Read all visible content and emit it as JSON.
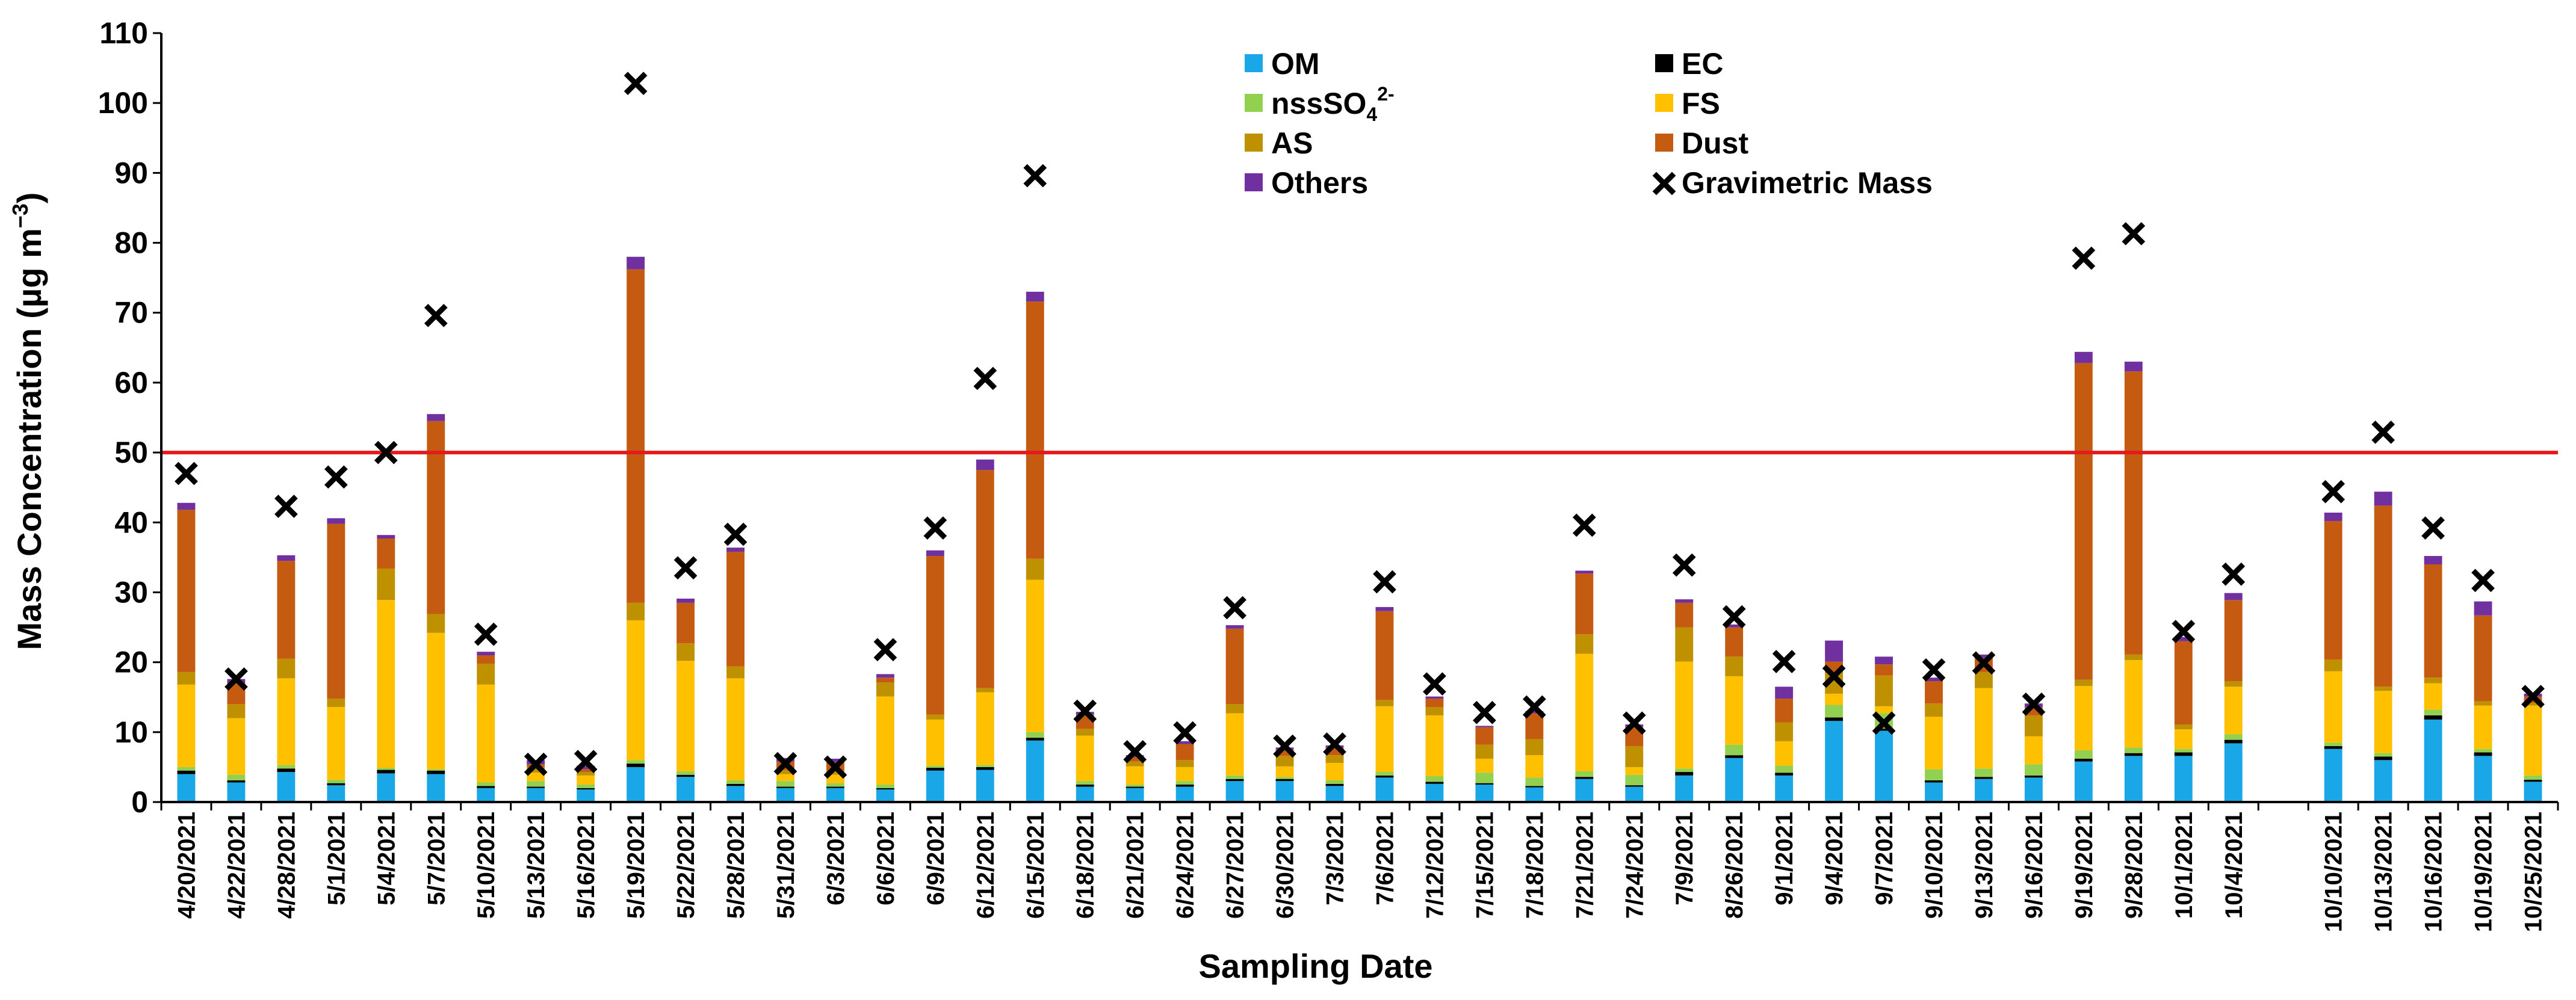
{
  "chart_data": {
    "type": "bar",
    "stacked": true,
    "xlabel": "Sampling Date",
    "ylabel_main": "Mass Concentration (µg m",
    "ylabel_sup": "−3",
    "ylabel_close": ")",
    "ylim": [
      0,
      110
    ],
    "yticks": [
      0,
      10,
      20,
      30,
      40,
      50,
      60,
      70,
      80,
      90,
      100,
      110
    ],
    "reference_line": {
      "value": 50,
      "color": "#e41a1c"
    },
    "categories": [
      "4/20/2021",
      "4/22/2021",
      "4/28/2021",
      "5/1/2021",
      "5/4/2021",
      "5/7/2021",
      "5/10/2021",
      "5/13/2021",
      "5/16/2021",
      "5/19/2021",
      "5/22/2021",
      "5/28/2021",
      "5/31/2021",
      "6/3/2021",
      "6/6/2021",
      "6/9/2021",
      "6/12/2021",
      "6/15/2021",
      "6/18/2021",
      "6/21/2021",
      "6/24/2021",
      "6/27/2021",
      "6/30/2021",
      "7/3/2021",
      "7/6/2021",
      "7/12/2021",
      "7/15/2021",
      "7/18/2021",
      "7/21/2021",
      "7/24/2021",
      "7/9/2021",
      "8/26/2021",
      "9/1/2021",
      "9/4/2021",
      "9/7/2021",
      "9/10/2021",
      "9/13/2021",
      "9/16/2021",
      "9/19/2021",
      "9/28/2021",
      "10/1/2021",
      "10/4/2021",
      "",
      "10/10/2021",
      "10/13/2021",
      "10/16/2021",
      "10/19/2021",
      "10/25/2021"
    ],
    "series": [
      {
        "name": "OM",
        "color": "#1aa7e8",
        "values": [
          4,
          2.8,
          4.3,
          2.4,
          4.1,
          4,
          2,
          2,
          1.8,
          5,
          3.6,
          2.3,
          2,
          2,
          1.8,
          4.5,
          4.6,
          8.8,
          2.2,
          2,
          2.2,
          3,
          3,
          2.3,
          3.5,
          2.6,
          2.5,
          2.1,
          3.3,
          2.2,
          3.8,
          6.3,
          3.8,
          11.6,
          10.2,
          2.8,
          3.3,
          3.5,
          5.8,
          6.6,
          6.6,
          8.4,
          null,
          7.6,
          6,
          11.8,
          6.6,
          2.9
        ]
      },
      {
        "name": "EC",
        "color": "#000000",
        "values": [
          0.5,
          0.3,
          0.5,
          0.3,
          0.5,
          0.5,
          0.3,
          0.2,
          0.2,
          0.5,
          0.3,
          0.3,
          0.2,
          0.2,
          0.2,
          0.4,
          0.4,
          0.4,
          0.3,
          0.2,
          0.3,
          0.3,
          0.3,
          0.3,
          0.3,
          0.3,
          0.2,
          0.2,
          0.3,
          0.2,
          0.5,
          0.4,
          0.4,
          0.5,
          0.3,
          0.3,
          0.3,
          0.3,
          0.4,
          0.4,
          0.5,
          0.5,
          null,
          0.4,
          0.5,
          0.6,
          0.5,
          0.3
        ]
      },
      {
        "name": "nssSO₄²⁻",
        "color": "#92d050",
        "values": [
          0.5,
          0.8,
          0.5,
          0.5,
          0.3,
          0.2,
          0.5,
          0.8,
          0.5,
          0.5,
          0.5,
          0.5,
          0.8,
          0.5,
          0.5,
          0.3,
          0.3,
          0.8,
          0.5,
          0.3,
          0.5,
          0.5,
          0.3,
          0.5,
          0.5,
          0.8,
          1.5,
          1.2,
          0.8,
          1.5,
          0.5,
          1.5,
          1,
          1.8,
          2.2,
          1.6,
          1.2,
          1.6,
          1.2,
          0.8,
          0.5,
          0.8,
          null,
          0.5,
          0.5,
          0.8,
          0.5,
          0.6
        ]
      },
      {
        "name": "FS",
        "color": "#ffc000",
        "values": [
          11.8,
          8.1,
          12.4,
          10.4,
          24,
          19.5,
          14,
          1.2,
          1.3,
          20,
          15.8,
          14.6,
          1,
          1.2,
          12.6,
          6.6,
          10.4,
          21.8,
          6.5,
          2.6,
          2,
          8.9,
          1.5,
          2.5,
          9.4,
          8.7,
          2,
          3.2,
          16.8,
          1.1,
          15.3,
          9.8,
          3.5,
          1.6,
          1,
          7.5,
          11.5,
          4,
          9.2,
          12.5,
          2.8,
          6.8,
          null,
          10.2,
          8.9,
          3.8,
          6.2,
          10
        ]
      },
      {
        "name": "AS",
        "color": "#bf9000",
        "values": [
          1.8,
          2,
          2.8,
          1.2,
          4.5,
          2.7,
          3,
          0.8,
          0.5,
          2.5,
          2.5,
          1.7,
          0.6,
          0.6,
          2,
          0.7,
          0.6,
          3,
          1,
          0.7,
          1,
          1.3,
          1.5,
          1.1,
          0.9,
          1.2,
          2,
          2.3,
          2.8,
          3,
          4.9,
          2.8,
          2.7,
          3,
          4.4,
          1.9,
          2.3,
          3,
          0.9,
          0.8,
          0.7,
          0.8,
          null,
          1.7,
          0.6,
          0.8,
          0.6,
          0.4
        ]
      },
      {
        "name": "Dust",
        "color": "#c55a11",
        "values": [
          23.2,
          3,
          14,
          25,
          4.3,
          27.6,
          1.2,
          0.4,
          0.4,
          47.7,
          5.8,
          16.4,
          1.2,
          1.2,
          0.7,
          22.7,
          31.2,
          36.8,
          2,
          0.6,
          2.3,
          10.8,
          0.9,
          1.1,
          12.7,
          1.2,
          2.5,
          3.7,
          8.7,
          2.8,
          3.5,
          4.2,
          3.4,
          1.6,
          1.6,
          3.2,
          2,
          1.2,
          45.3,
          40.5,
          11.9,
          11.6,
          null,
          19.8,
          25.9,
          16.2,
          12.3,
          0.9
        ]
      },
      {
        "name": "Others",
        "color": "#7030a0",
        "values": [
          1,
          0.6,
          0.8,
          0.8,
          0.5,
          1,
          0.5,
          0.6,
          0.5,
          1.8,
          0.6,
          0.6,
          0.5,
          0.5,
          0.5,
          0.8,
          1.5,
          1.4,
          0.4,
          0.3,
          0.4,
          0.5,
          0.3,
          0.3,
          0.6,
          0.3,
          0.2,
          0.3,
          0.4,
          0.3,
          0.5,
          0.4,
          1.7,
          3,
          1.1,
          0.5,
          0.5,
          0.5,
          1.6,
          1.4,
          0.6,
          1,
          null,
          1.2,
          2,
          1.2,
          2,
          0.4
        ]
      }
    ],
    "gravimetric": {
      "name": "Gravimetric Mass",
      "values": [
        47,
        17.6,
        42.3,
        46.5,
        50,
        69.6,
        24,
        5.4,
        5.8,
        102.8,
        33.5,
        38.3,
        5.5,
        5,
        21.8,
        39.2,
        60.6,
        89.6,
        13,
        7.2,
        9.9,
        27.8,
        8,
        8.3,
        31.5,
        16.9,
        12.8,
        13.6,
        39.6,
        11.3,
        33.9,
        26.5,
        20.1,
        18,
        11.3,
        18.9,
        19.9,
        14,
        77.8,
        81.3,
        24.4,
        32.6,
        null,
        44.4,
        52.9,
        39.2,
        31.7,
        15.1
      ]
    },
    "legend": [
      {
        "label": "OM",
        "color": "#1aa7e8",
        "marker": "square"
      },
      {
        "label": "EC",
        "color": "#000000",
        "marker": "square"
      },
      {
        "label_main": "nssSO",
        "label_sub": "4",
        "label_sup": "2-",
        "color": "#92d050",
        "marker": "square"
      },
      {
        "label": "FS",
        "color": "#ffc000",
        "marker": "square"
      },
      {
        "label": "AS",
        "color": "#bf9000",
        "marker": "square"
      },
      {
        "label": "Dust",
        "color": "#c55a11",
        "marker": "square"
      },
      {
        "label": "Others",
        "color": "#7030a0",
        "marker": "square"
      },
      {
        "label": "Gravimetric Mass",
        "color": "#000000",
        "marker": "cross"
      }
    ]
  }
}
